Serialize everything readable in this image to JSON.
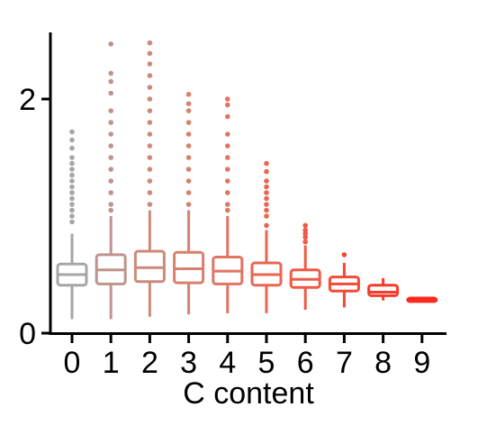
{
  "chart_data": {
    "type": "box",
    "title": "",
    "xlabel": "C content",
    "ylabel": "",
    "ylim": [
      0,
      2.6
    ],
    "y_ticks": [
      0,
      2
    ],
    "grid": false,
    "categories": [
      "0",
      "1",
      "2",
      "3",
      "4",
      "5",
      "6",
      "7",
      "8",
      "9"
    ],
    "colors": [
      "#a6a6a6",
      "#c0938c",
      "#cd8a79",
      "#d8806e",
      "#e27462",
      "#eb6650",
      "#f05a45",
      "#f44a37",
      "#f83a2b",
      "#fb2a1f"
    ],
    "boxes": [
      {
        "category": "0",
        "whisker_low": 0.12,
        "q1": 0.41,
        "median": 0.5,
        "q3": 0.59,
        "whisker_high": 0.85,
        "outliers": [
          0.95,
          1.0,
          1.05,
          1.1,
          1.15,
          1.2,
          1.25,
          1.3,
          1.35,
          1.4,
          1.45,
          1.5,
          1.58,
          1.65,
          1.72
        ]
      },
      {
        "category": "1",
        "whisker_low": 0.12,
        "q1": 0.42,
        "median": 0.54,
        "q3": 0.67,
        "whisker_high": 1.0,
        "outliers": [
          1.05,
          1.1,
          1.2,
          1.3,
          1.4,
          1.5,
          1.6,
          1.7,
          1.8,
          1.9,
          2.05,
          2.15,
          2.22,
          2.47
        ]
      },
      {
        "category": "2",
        "whisker_low": 0.14,
        "q1": 0.44,
        "median": 0.56,
        "q3": 0.7,
        "whisker_high": 1.05,
        "outliers": [
          1.1,
          1.2,
          1.3,
          1.4,
          1.5,
          1.6,
          1.7,
          1.8,
          1.9,
          2.0,
          2.1,
          2.2,
          2.3,
          2.39,
          2.48
        ]
      },
      {
        "category": "3",
        "whisker_low": 0.16,
        "q1": 0.43,
        "median": 0.55,
        "q3": 0.69,
        "whisker_high": 1.05,
        "outliers": [
          1.1,
          1.2,
          1.3,
          1.4,
          1.5,
          1.6,
          1.7,
          1.8,
          1.9,
          1.96,
          2.04
        ]
      },
      {
        "category": "4",
        "whisker_low": 0.17,
        "q1": 0.42,
        "median": 0.53,
        "q3": 0.65,
        "whisker_high": 1.0,
        "outliers": [
          1.05,
          1.1,
          1.2,
          1.3,
          1.4,
          1.5,
          1.6,
          1.7,
          1.85,
          1.95,
          2.0
        ]
      },
      {
        "category": "5",
        "whisker_low": 0.17,
        "q1": 0.41,
        "median": 0.5,
        "q3": 0.6,
        "whisker_high": 0.88,
        "outliers": [
          0.92,
          1.0,
          1.05,
          1.1,
          1.15,
          1.2,
          1.25,
          1.3,
          1.38,
          1.45
        ]
      },
      {
        "category": "6",
        "whisker_low": 0.2,
        "q1": 0.39,
        "median": 0.46,
        "q3": 0.54,
        "whisker_high": 0.75,
        "outliers": [
          0.78,
          0.82,
          0.85,
          0.88,
          0.92
        ]
      },
      {
        "category": "7",
        "whisker_low": 0.22,
        "q1": 0.36,
        "median": 0.42,
        "q3": 0.48,
        "whisker_high": 0.6,
        "outliers": [
          0.67
        ]
      },
      {
        "category": "8",
        "whisker_low": 0.28,
        "q1": 0.32,
        "median": 0.35,
        "q3": 0.41,
        "whisker_high": 0.47,
        "outliers": []
      },
      {
        "category": "9",
        "whisker_low": 0.27,
        "q1": 0.27,
        "median": 0.28,
        "q3": 0.3,
        "whisker_high": 0.31,
        "outliers": []
      }
    ]
  }
}
